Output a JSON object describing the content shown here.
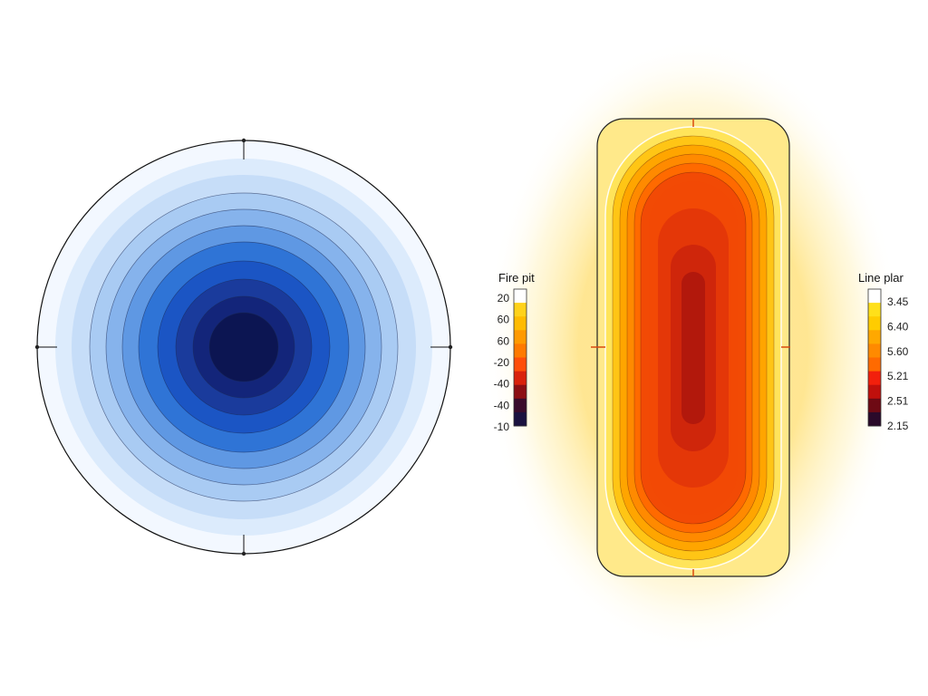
{
  "chart_data": [
    {
      "type": "heatmap",
      "subtype": "filled-contour-circular",
      "colormap": [
        "#f3f8ff",
        "#dcebfc",
        "#c6ddf8",
        "#a9cbf3",
        "#86b3ec",
        "#5f98e3",
        "#2f74d6",
        "#1b55c4",
        "#1a3b9c",
        "#13257a",
        "#0c1552"
      ],
      "grid": false
    },
    {
      "type": "heatmap",
      "subtype": "filled-contour-stadium",
      "colormap": [
        "#fff6c8",
        "#ffe45a",
        "#ffc515",
        "#ffa500",
        "#ff8a00",
        "#ff6a00",
        "#f24a05",
        "#df320a",
        "#c8220c",
        "#a8140e",
        "#7c0d12"
      ],
      "grid": false
    }
  ],
  "colorbars": [
    {
      "title": "Fire pit",
      "ticks": [
        "20",
        "60",
        "60",
        "-20",
        "-40",
        "-40",
        "-10"
      ],
      "colors": [
        "#ffffff",
        "#ffd21a",
        "#ffbb00",
        "#ff9a00",
        "#ff7a00",
        "#ff4e0a",
        "#d9220c",
        "#8c0f14",
        "#3a0c2c",
        "#1a1240"
      ]
    },
    {
      "title": "Line plar",
      "ticks": [
        "3.45",
        "6.40",
        "5.60",
        "5.21",
        "2.51",
        "2.15"
      ],
      "colors": [
        "#ffffff",
        "#ffe01a",
        "#ffcc00",
        "#ffa800",
        "#ff8a00",
        "#ff6a00",
        "#f2200c",
        "#c0100c",
        "#6e0a14",
        "#2a0a2a"
      ]
    }
  ]
}
